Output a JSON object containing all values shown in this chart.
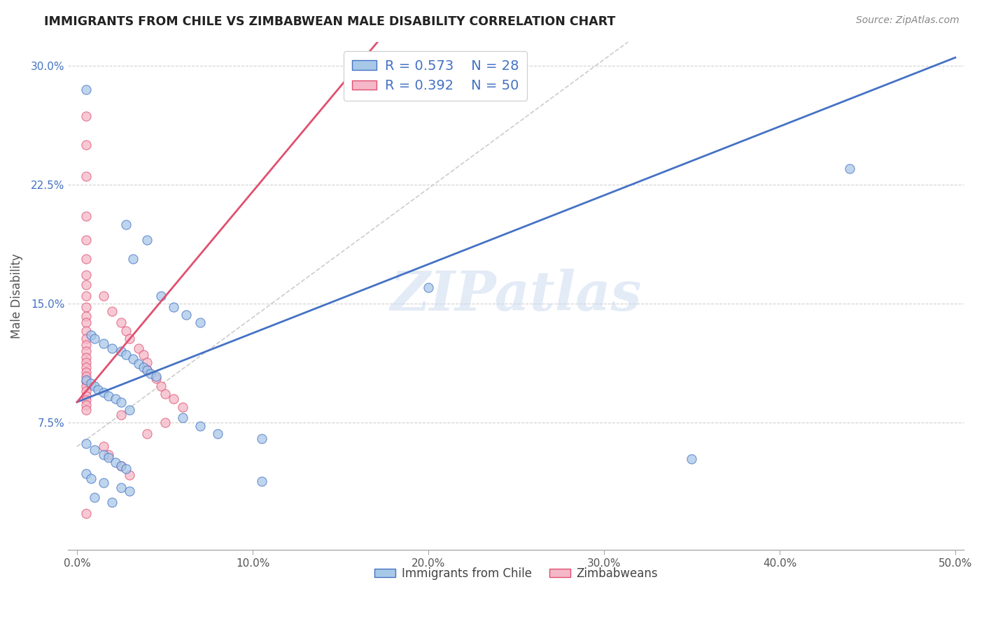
{
  "title": "IMMIGRANTS FROM CHILE VS ZIMBABWEAN MALE DISABILITY CORRELATION CHART",
  "source": "Source: ZipAtlas.com",
  "ylabel": "Male Disability",
  "xlim": [
    -0.005,
    0.505
  ],
  "ylim": [
    -0.005,
    0.315
  ],
  "xticks": [
    0.0,
    0.1,
    0.2,
    0.3,
    0.4,
    0.5
  ],
  "yticks": [
    0.075,
    0.15,
    0.225,
    0.3
  ],
  "ytick_labels": [
    "7.5%",
    "15.0%",
    "22.5%",
    "30.0%"
  ],
  "xtick_labels": [
    "0.0%",
    "10.0%",
    "20.0%",
    "30.0%",
    "40.0%",
    "50.0%"
  ],
  "color_chile": "#a8c8e8",
  "color_zimbabwe": "#f4b8c8",
  "color_line_chile": "#4472c4",
  "color_line_zimbabwe": "#e05070",
  "color_diagonal": "#c0c0c0",
  "background": "#ffffff",
  "marker_size": 90,
  "chile_line": [
    [
      0.0,
      0.088
    ],
    [
      0.5,
      0.305
    ]
  ],
  "zimbabwe_line": [
    [
      0.0,
      0.088
    ],
    [
      0.175,
      0.32
    ]
  ],
  "diagonal_line": [
    [
      0.0,
      0.06
    ],
    [
      0.32,
      0.32
    ]
  ],
  "chile_points": [
    [
      0.005,
      0.285
    ],
    [
      0.028,
      0.2
    ],
    [
      0.032,
      0.178
    ],
    [
      0.04,
      0.19
    ],
    [
      0.048,
      0.155
    ],
    [
      0.055,
      0.148
    ],
    [
      0.062,
      0.143
    ],
    [
      0.07,
      0.138
    ],
    [
      0.008,
      0.13
    ],
    [
      0.01,
      0.128
    ],
    [
      0.015,
      0.125
    ],
    [
      0.02,
      0.122
    ],
    [
      0.025,
      0.12
    ],
    [
      0.028,
      0.118
    ],
    [
      0.032,
      0.115
    ],
    [
      0.035,
      0.112
    ],
    [
      0.038,
      0.11
    ],
    [
      0.04,
      0.108
    ],
    [
      0.042,
      0.106
    ],
    [
      0.045,
      0.104
    ],
    [
      0.005,
      0.102
    ],
    [
      0.008,
      0.1
    ],
    [
      0.01,
      0.098
    ],
    [
      0.012,
      0.096
    ],
    [
      0.015,
      0.094
    ],
    [
      0.018,
      0.092
    ],
    [
      0.022,
      0.09
    ],
    [
      0.025,
      0.088
    ],
    [
      0.03,
      0.083
    ],
    [
      0.06,
      0.078
    ],
    [
      0.07,
      0.073
    ],
    [
      0.08,
      0.068
    ],
    [
      0.105,
      0.065
    ],
    [
      0.005,
      0.062
    ],
    [
      0.01,
      0.058
    ],
    [
      0.015,
      0.055
    ],
    [
      0.018,
      0.053
    ],
    [
      0.022,
      0.05
    ],
    [
      0.025,
      0.048
    ],
    [
      0.028,
      0.046
    ],
    [
      0.005,
      0.043
    ],
    [
      0.008,
      0.04
    ],
    [
      0.015,
      0.037
    ],
    [
      0.025,
      0.034
    ],
    [
      0.03,
      0.032
    ],
    [
      0.01,
      0.028
    ],
    [
      0.02,
      0.025
    ],
    [
      0.105,
      0.038
    ],
    [
      0.2,
      0.16
    ],
    [
      0.35,
      0.052
    ],
    [
      0.44,
      0.235
    ]
  ],
  "zimbabwe_points": [
    [
      0.005,
      0.268
    ],
    [
      0.005,
      0.25
    ],
    [
      0.005,
      0.23
    ],
    [
      0.005,
      0.205
    ],
    [
      0.005,
      0.19
    ],
    [
      0.005,
      0.178
    ],
    [
      0.005,
      0.168
    ],
    [
      0.005,
      0.162
    ],
    [
      0.005,
      0.155
    ],
    [
      0.005,
      0.148
    ],
    [
      0.005,
      0.142
    ],
    [
      0.005,
      0.138
    ],
    [
      0.005,
      0.133
    ],
    [
      0.005,
      0.128
    ],
    [
      0.005,
      0.124
    ],
    [
      0.005,
      0.12
    ],
    [
      0.005,
      0.116
    ],
    [
      0.005,
      0.113
    ],
    [
      0.005,
      0.11
    ],
    [
      0.005,
      0.107
    ],
    [
      0.005,
      0.104
    ],
    [
      0.005,
      0.101
    ],
    [
      0.005,
      0.098
    ],
    [
      0.005,
      0.095
    ],
    [
      0.005,
      0.092
    ],
    [
      0.005,
      0.089
    ],
    [
      0.005,
      0.086
    ],
    [
      0.005,
      0.083
    ],
    [
      0.015,
      0.155
    ],
    [
      0.02,
      0.145
    ],
    [
      0.025,
      0.138
    ],
    [
      0.028,
      0.133
    ],
    [
      0.03,
      0.128
    ],
    [
      0.035,
      0.122
    ],
    [
      0.038,
      0.118
    ],
    [
      0.04,
      0.113
    ],
    [
      0.04,
      0.108
    ],
    [
      0.045,
      0.103
    ],
    [
      0.048,
      0.098
    ],
    [
      0.05,
      0.093
    ],
    [
      0.055,
      0.09
    ],
    [
      0.06,
      0.085
    ],
    [
      0.025,
      0.08
    ],
    [
      0.05,
      0.075
    ],
    [
      0.04,
      0.068
    ],
    [
      0.015,
      0.06
    ],
    [
      0.018,
      0.055
    ],
    [
      0.025,
      0.048
    ],
    [
      0.03,
      0.042
    ],
    [
      0.005,
      0.018
    ]
  ]
}
